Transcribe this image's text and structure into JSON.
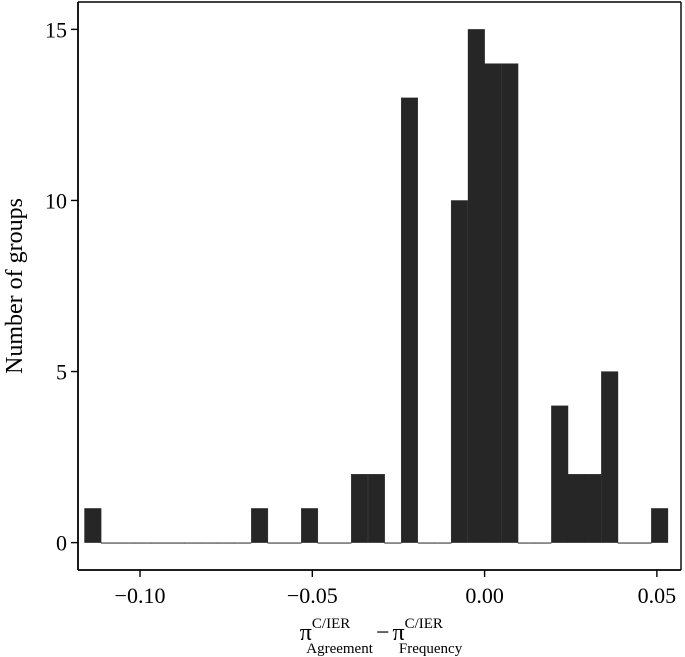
{
  "chart_data": {
    "type": "bar",
    "subtype": "histogram",
    "bin_width": 0.00484,
    "bins": [
      {
        "x": -0.1137,
        "count": 1
      },
      {
        "x": -0.1089,
        "count": 0
      },
      {
        "x": -0.104,
        "count": 0
      },
      {
        "x": -0.0992,
        "count": 0
      },
      {
        "x": -0.0944,
        "count": 0
      },
      {
        "x": -0.0895,
        "count": 0
      },
      {
        "x": -0.0847,
        "count": 0
      },
      {
        "x": -0.0798,
        "count": 0
      },
      {
        "x": -0.075,
        "count": 0
      },
      {
        "x": -0.0702,
        "count": 0
      },
      {
        "x": -0.0653,
        "count": 1
      },
      {
        "x": -0.0605,
        "count": 0
      },
      {
        "x": -0.0556,
        "count": 0
      },
      {
        "x": -0.0508,
        "count": 1
      },
      {
        "x": -0.046,
        "count": 0
      },
      {
        "x": -0.0411,
        "count": 0
      },
      {
        "x": -0.0363,
        "count": 2
      },
      {
        "x": -0.0314,
        "count": 2
      },
      {
        "x": -0.0266,
        "count": 0
      },
      {
        "x": -0.0218,
        "count": 13
      },
      {
        "x": -0.0169,
        "count": 0
      },
      {
        "x": -0.0121,
        "count": 0
      },
      {
        "x": -0.0073,
        "count": 10
      },
      {
        "x": -0.0024,
        "count": 15
      },
      {
        "x": 0.0024,
        "count": 14
      },
      {
        "x": 0.0073,
        "count": 14
      },
      {
        "x": 0.0121,
        "count": 0
      },
      {
        "x": 0.0169,
        "count": 0
      },
      {
        "x": 0.0218,
        "count": 4
      },
      {
        "x": 0.0266,
        "count": 2
      },
      {
        "x": 0.0314,
        "count": 2
      },
      {
        "x": 0.0363,
        "count": 5
      },
      {
        "x": 0.0411,
        "count": 0
      },
      {
        "x": 0.046,
        "count": 0
      },
      {
        "x": 0.0508,
        "count": 1
      }
    ],
    "xlim": [
      -0.118,
      0.057
    ],
    "ylim": [
      -0.8,
      15.8
    ],
    "xticks": [
      {
        "value": -0.1,
        "label": "−0.10"
      },
      {
        "value": -0.05,
        "label": "−0.05"
      },
      {
        "value": 0.0,
        "label": "0.00"
      },
      {
        "value": 0.05,
        "label": "0.05"
      }
    ],
    "yticks": [
      {
        "value": 0,
        "label": "0"
      },
      {
        "value": 5,
        "label": "5"
      },
      {
        "value": 10,
        "label": "10"
      },
      {
        "value": 15,
        "label": "15"
      }
    ],
    "ylabel": "Number of groups",
    "xlabel": {
      "term1": "π",
      "term1_sup": "C/IER",
      "term1_sub": "Agreement",
      "minus": "−",
      "term2": "π",
      "term2_sup": "C/IER",
      "term2_sub": "Frequency"
    },
    "bar_color": "#262626",
    "grid": false,
    "legend": "none"
  }
}
